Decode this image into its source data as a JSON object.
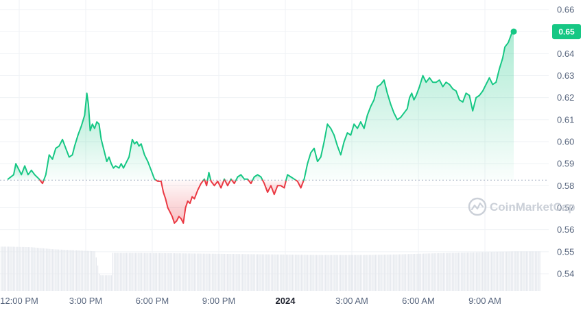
{
  "chart_data": {
    "type": "line",
    "title": "",
    "xlabel": "",
    "ylabel": "",
    "ylim": [
      0.533,
      0.668
    ],
    "yticks": [
      0.54,
      0.55,
      0.56,
      0.57,
      0.58,
      0.59,
      0.6,
      0.61,
      0.62,
      0.63,
      0.64,
      0.65,
      0.66
    ],
    "ytick_labels": [
      "0.54",
      "0.55",
      "0.56",
      "0.57",
      "0.58",
      "0.59",
      "0.60",
      "0.61",
      "0.62",
      "0.63",
      "0.64",
      "0.65",
      "0.66"
    ],
    "xlim": [
      "11:30 AM",
      "11:40 AM (next day)"
    ],
    "xticks": [
      {
        "label": "12:00 PM",
        "hour": 0.5,
        "bold": false
      },
      {
        "label": "3:00 PM",
        "hour": 3.5,
        "bold": false
      },
      {
        "label": "6:00 PM",
        "hour": 6.5,
        "bold": false
      },
      {
        "label": "9:00 PM",
        "hour": 9.5,
        "bold": false
      },
      {
        "label": "2024",
        "hour": 12.5,
        "bold": true
      },
      {
        "label": "3:00 AM",
        "hour": 15.5,
        "bold": false
      },
      {
        "label": "6:00 AM",
        "hour": 18.5,
        "bold": false
      },
      {
        "label": "9:00 AM",
        "hour": 21.5,
        "bold": false
      }
    ],
    "reference_price": 0.5825,
    "current_price_label": "0.65",
    "grid": true,
    "colors": {
      "up": "#16c784",
      "down": "#ea3943",
      "reference": "#a6b0c3",
      "volume": "#e6e9ee",
      "badge": "#16c784"
    },
    "series": [
      {
        "values": [
          [
            0.0,
            0.583
          ],
          [
            0.25,
            0.585
          ],
          [
            0.35,
            0.59
          ],
          [
            0.5,
            0.587
          ],
          [
            0.6,
            0.585
          ],
          [
            0.75,
            0.589
          ],
          [
            0.9,
            0.585
          ],
          [
            1.05,
            0.587
          ],
          [
            1.2,
            0.585
          ],
          [
            1.4,
            0.583
          ],
          [
            1.55,
            0.581
          ],
          [
            1.7,
            0.585
          ],
          [
            1.85,
            0.594
          ],
          [
            2.0,
            0.592
          ],
          [
            2.15,
            0.597
          ],
          [
            2.3,
            0.598
          ],
          [
            2.45,
            0.601
          ],
          [
            2.6,
            0.597
          ],
          [
            2.75,
            0.593
          ],
          [
            2.9,
            0.594
          ],
          [
            3.0,
            0.598
          ],
          [
            3.15,
            0.603
          ],
          [
            3.3,
            0.607
          ],
          [
            3.45,
            0.612
          ],
          [
            3.55,
            0.622
          ],
          [
            3.62,
            0.617
          ],
          [
            3.7,
            0.605
          ],
          [
            3.8,
            0.608
          ],
          [
            3.9,
            0.606
          ],
          [
            4.0,
            0.609
          ],
          [
            4.1,
            0.608
          ],
          [
            4.2,
            0.601
          ],
          [
            4.35,
            0.595
          ],
          [
            4.45,
            0.591
          ],
          [
            4.55,
            0.593
          ],
          [
            4.65,
            0.59
          ],
          [
            4.75,
            0.588
          ],
          [
            4.85,
            0.589
          ],
          [
            5.0,
            0.588
          ],
          [
            5.1,
            0.59
          ],
          [
            5.2,
            0.588
          ],
          [
            5.3,
            0.59
          ],
          [
            5.45,
            0.593
          ],
          [
            5.6,
            0.601
          ],
          [
            5.7,
            0.599
          ],
          [
            5.8,
            0.6
          ],
          [
            5.9,
            0.598
          ],
          [
            6.0,
            0.599
          ],
          [
            6.15,
            0.594
          ],
          [
            6.3,
            0.591
          ],
          [
            6.45,
            0.587
          ],
          [
            6.6,
            0.583
          ],
          [
            6.75,
            0.582
          ],
          [
            6.9,
            0.582
          ],
          [
            7.0,
            0.577
          ],
          [
            7.1,
            0.574
          ],
          [
            7.2,
            0.57
          ],
          [
            7.3,
            0.568
          ],
          [
            7.4,
            0.566
          ],
          [
            7.5,
            0.563
          ],
          [
            7.6,
            0.564
          ],
          [
            7.7,
            0.566
          ],
          [
            7.8,
            0.565
          ],
          [
            7.9,
            0.563
          ],
          [
            8.0,
            0.57
          ],
          [
            8.1,
            0.573
          ],
          [
            8.2,
            0.572
          ],
          [
            8.3,
            0.575
          ],
          [
            8.4,
            0.574
          ],
          [
            8.55,
            0.578
          ],
          [
            8.7,
            0.581
          ],
          [
            8.85,
            0.583
          ],
          [
            8.95,
            0.58
          ],
          [
            9.05,
            0.586
          ],
          [
            9.15,
            0.582
          ],
          [
            9.3,
            0.58
          ],
          [
            9.45,
            0.582
          ],
          [
            9.6,
            0.579
          ],
          [
            9.75,
            0.583
          ],
          [
            9.9,
            0.58
          ],
          [
            10.05,
            0.583
          ],
          [
            10.2,
            0.581
          ],
          [
            10.35,
            0.584
          ],
          [
            10.5,
            0.585
          ],
          [
            10.65,
            0.583
          ],
          [
            10.8,
            0.583
          ],
          [
            10.95,
            0.581
          ],
          [
            11.1,
            0.584
          ],
          [
            11.25,
            0.585
          ],
          [
            11.4,
            0.584
          ],
          [
            11.55,
            0.581
          ],
          [
            11.7,
            0.577
          ],
          [
            11.85,
            0.58
          ],
          [
            12.0,
            0.576
          ],
          [
            12.15,
            0.58
          ],
          [
            12.3,
            0.58
          ],
          [
            12.45,
            0.579
          ],
          [
            12.6,
            0.585
          ],
          [
            12.75,
            0.584
          ],
          [
            12.9,
            0.583
          ],
          [
            13.05,
            0.582
          ],
          [
            13.2,
            0.579
          ],
          [
            13.35,
            0.583
          ],
          [
            13.5,
            0.59
          ],
          [
            13.65,
            0.595
          ],
          [
            13.8,
            0.597
          ],
          [
            13.95,
            0.591
          ],
          [
            14.1,
            0.593
          ],
          [
            14.25,
            0.6
          ],
          [
            14.4,
            0.608
          ],
          [
            14.55,
            0.606
          ],
          [
            14.7,
            0.603
          ],
          [
            14.85,
            0.598
          ],
          [
            15.0,
            0.594
          ],
          [
            15.15,
            0.6
          ],
          [
            15.3,
            0.604
          ],
          [
            15.45,
            0.603
          ],
          [
            15.6,
            0.608
          ],
          [
            15.75,
            0.606
          ],
          [
            15.9,
            0.609
          ],
          [
            16.05,
            0.606
          ],
          [
            16.2,
            0.612
          ],
          [
            16.35,
            0.616
          ],
          [
            16.5,
            0.619
          ],
          [
            16.65,
            0.625
          ],
          [
            16.8,
            0.626
          ],
          [
            16.95,
            0.628
          ],
          [
            17.1,
            0.622
          ],
          [
            17.25,
            0.617
          ],
          [
            17.4,
            0.613
          ],
          [
            17.55,
            0.61
          ],
          [
            17.7,
            0.611
          ],
          [
            17.85,
            0.613
          ],
          [
            18.0,
            0.615
          ],
          [
            18.1,
            0.62
          ],
          [
            18.2,
            0.622
          ],
          [
            18.3,
            0.619
          ],
          [
            18.4,
            0.621
          ],
          [
            18.55,
            0.625
          ],
          [
            18.7,
            0.63
          ],
          [
            18.85,
            0.627
          ],
          [
            19.0,
            0.629
          ],
          [
            19.15,
            0.627
          ],
          [
            19.3,
            0.627
          ],
          [
            19.45,
            0.628
          ],
          [
            19.6,
            0.625
          ],
          [
            19.75,
            0.627
          ],
          [
            19.9,
            0.626
          ],
          [
            20.05,
            0.624
          ],
          [
            20.2,
            0.623
          ],
          [
            20.35,
            0.619
          ],
          [
            20.5,
            0.618
          ],
          [
            20.65,
            0.622
          ],
          [
            20.8,
            0.621
          ],
          [
            20.95,
            0.614
          ],
          [
            21.1,
            0.62
          ],
          [
            21.25,
            0.621
          ],
          [
            21.4,
            0.623
          ],
          [
            21.55,
            0.626
          ],
          [
            21.7,
            0.629
          ],
          [
            21.85,
            0.626
          ],
          [
            22.0,
            0.627
          ],
          [
            22.15,
            0.633
          ],
          [
            22.3,
            0.638
          ],
          [
            22.4,
            0.643
          ],
          [
            22.55,
            0.645
          ],
          [
            22.7,
            0.649
          ],
          [
            22.8,
            0.65
          ]
        ]
      }
    ],
    "volume": [
      [
        0.0,
        0.85
      ],
      [
        1.0,
        0.84
      ],
      [
        2.0,
        0.8
      ],
      [
        3.0,
        0.78
      ],
      [
        3.9,
        0.76
      ],
      [
        4.1,
        0.3
      ],
      [
        4.6,
        0.3
      ],
      [
        4.65,
        0.73
      ],
      [
        6.0,
        0.73
      ],
      [
        8.0,
        0.72
      ],
      [
        10.0,
        0.71
      ],
      [
        12.0,
        0.7
      ],
      [
        14.0,
        0.69
      ],
      [
        16.0,
        0.69
      ],
      [
        17.5,
        0.7
      ],
      [
        19.0,
        0.72
      ],
      [
        21.0,
        0.74
      ],
      [
        22.8,
        0.76
      ]
    ]
  },
  "watermark": {
    "text": "CoinMarketCap",
    "icon": "coinmarketcap-logo-icon"
  }
}
